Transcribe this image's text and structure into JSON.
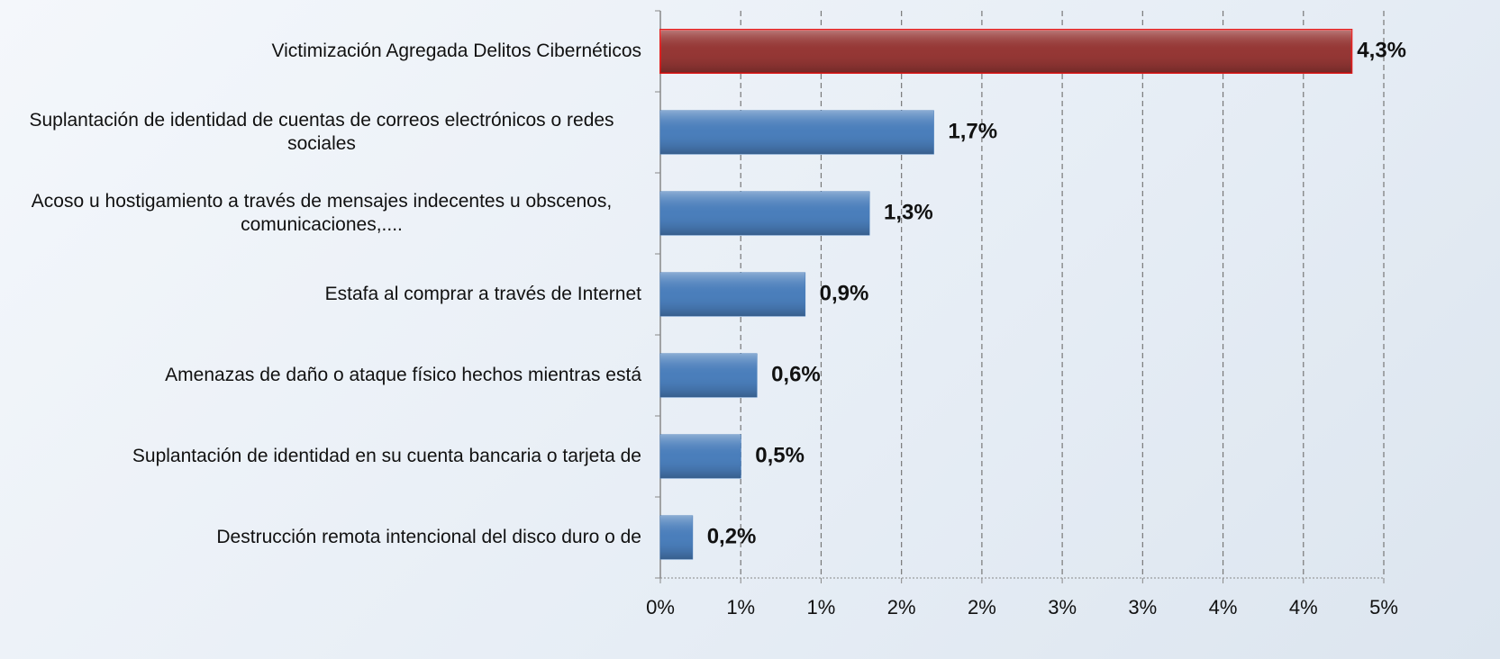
{
  "chart_data": {
    "type": "hbar",
    "categories": [
      "Victimización Agregada Delitos Cibernéticos",
      "Suplantación de identidad de cuentas de correos electrónicos o redes sociales",
      "Acoso u hostigamiento a través de mensajes indecentes u obscenos, comunicaciones,....",
      "Estafa al comprar a través de Internet",
      "Amenazas de daño o ataque físico hechos mientras está",
      "Suplantación de identidad en su cuenta bancaria o tarjeta de",
      "Destrucción remota intencional del disco duro o de"
    ],
    "values": [
      4.3,
      1.7,
      1.3,
      0.9,
      0.6,
      0.5,
      0.2
    ],
    "value_labels": [
      "4,3%",
      "1,7%",
      "1,3%",
      "0,9%",
      "0,6%",
      "0,5%",
      "0,2%"
    ],
    "colors": [
      "#953735",
      "#4a7ebb",
      "#4a7ebb",
      "#4a7ebb",
      "#4a7ebb",
      "#4a7ebb",
      "#4a7ebb"
    ],
    "xlim": [
      0,
      4.5
    ],
    "xticks": [
      {
        "value": 0,
        "label": "0%"
      },
      {
        "value": 0.5,
        "label": "1%"
      },
      {
        "value": 1,
        "label": "1%"
      },
      {
        "value": 1.5,
        "label": "2%"
      },
      {
        "value": 2,
        "label": "2%"
      },
      {
        "value": 2.5,
        "label": "3%"
      },
      {
        "value": 3,
        "label": "3%"
      },
      {
        "value": 3.5,
        "label": "4%"
      },
      {
        "value": 4,
        "label": "4%"
      },
      {
        "value": 4.5,
        "label": "5%"
      }
    ],
    "grid": true
  }
}
